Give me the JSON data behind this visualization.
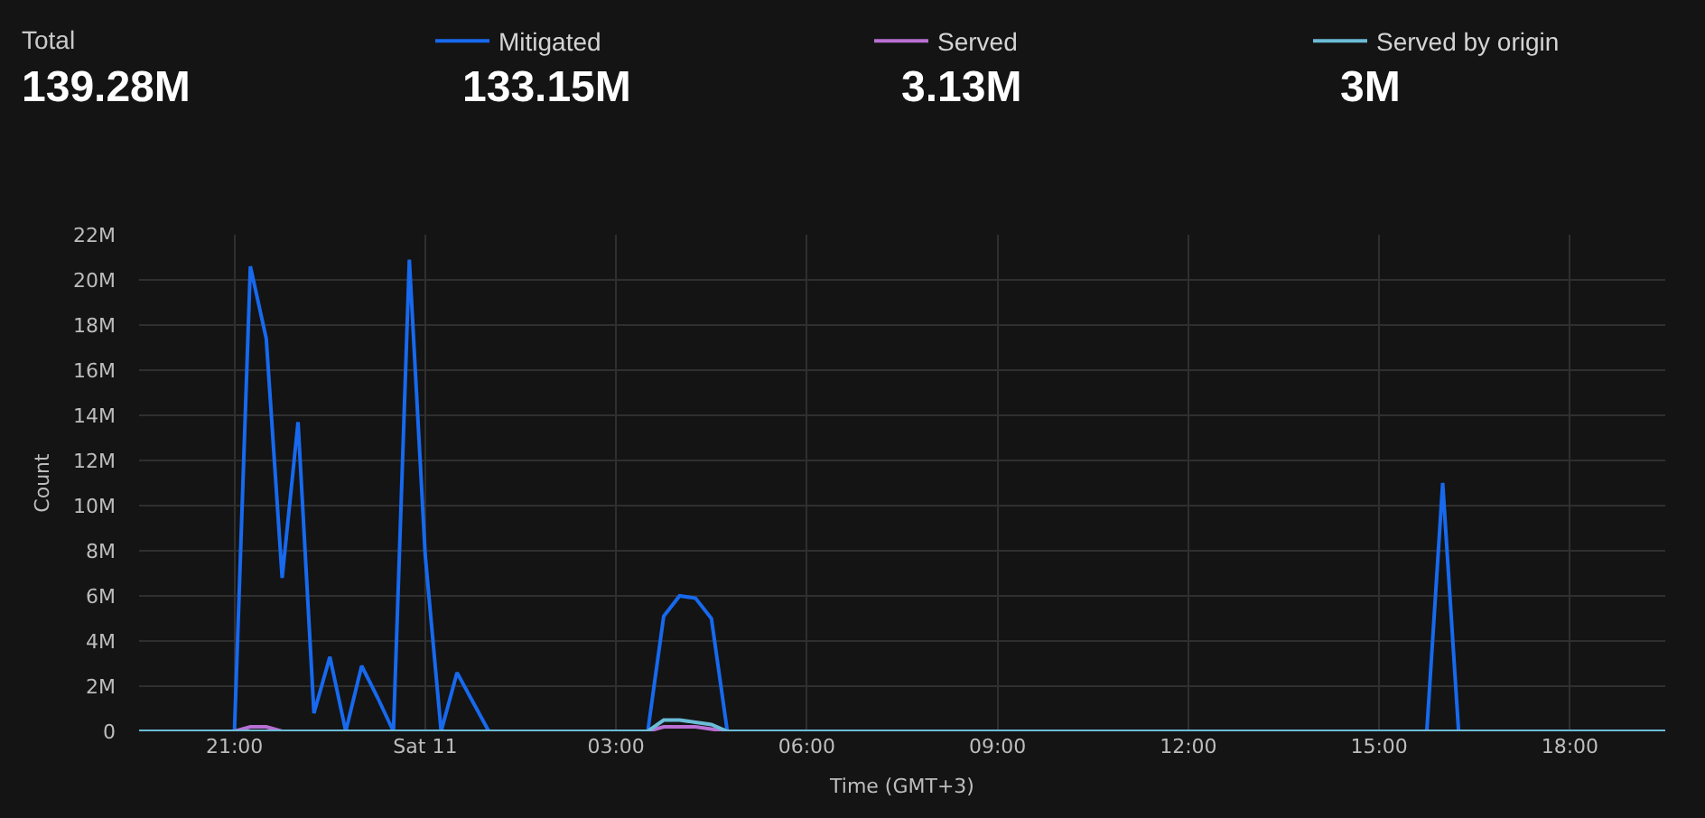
{
  "chart_data": {
    "type": "line",
    "xlabel": "Time (GMT+3)",
    "ylabel": "Count",
    "annotations": [
      "Total",
      "139.28M",
      "133.15M",
      "3.13M",
      "3M"
    ],
    "categories": [
      null,
      null,
      null,
      null,
      null,
      null,
      "21:00",
      null,
      null,
      null,
      null,
      null,
      null,
      null,
      null,
      null,
      null,
      null,
      "Sat 11",
      null,
      null,
      null,
      null,
      null,
      null,
      null,
      null,
      null,
      null,
      null,
      "03:00",
      null,
      null,
      null,
      null,
      null,
      null,
      null,
      null,
      null,
      null,
      null,
      "06:00",
      null,
      null,
      null,
      null,
      null,
      null,
      null,
      null,
      null,
      null,
      null,
      "09:00",
      null,
      null,
      null,
      null,
      null,
      null,
      null,
      null,
      null,
      null,
      null,
      "12:00",
      null,
      null,
      null,
      null,
      null,
      null,
      null,
      null,
      null,
      null,
      null,
      "15:00",
      null,
      null,
      null,
      null,
      null,
      null,
      null,
      null,
      null,
      null,
      null,
      "18:00",
      null,
      null,
      null,
      null,
      null,
      null
    ],
    "series": [
      {
        "name": "Mitigated",
        "color": "#1769ee",
        "values": [
          null,
          null,
          null,
          null,
          null,
          null,
          0,
          20.6,
          17.4,
          6.8,
          13.7,
          0.8,
          3.3,
          0,
          2.9,
          1.5,
          0,
          20.9,
          7.8,
          0,
          2.6,
          1.3,
          0,
          null,
          null,
          null,
          null,
          null,
          null,
          null,
          null,
          null,
          0,
          5.1,
          6,
          5.9,
          5,
          0,
          null,
          null,
          null,
          null,
          null,
          null,
          null,
          null,
          null,
          null,
          null,
          null,
          null,
          null,
          null,
          null,
          null,
          null,
          null,
          null,
          null,
          null,
          null,
          null,
          null,
          null,
          null,
          null,
          null,
          null,
          null,
          null,
          null,
          null,
          null,
          null,
          null,
          null,
          null,
          null,
          null,
          null,
          null,
          0,
          11,
          0,
          null,
          null,
          null,
          null,
          null,
          null,
          null,
          null,
          null,
          null,
          null,
          null,
          null
        ]
      },
      {
        "name": "Served",
        "color": "#b96fd3",
        "values": [
          null,
          null,
          null,
          null,
          null,
          null,
          0,
          0.2,
          0.2,
          0,
          null,
          null,
          null,
          null,
          null,
          null,
          null,
          null,
          null,
          null,
          null,
          null,
          null,
          null,
          null,
          null,
          null,
          null,
          null,
          null,
          null,
          null,
          0,
          0.2,
          0.2,
          0.2,
          0.1,
          0,
          null,
          null,
          null,
          null,
          null,
          null,
          null,
          null,
          null,
          null,
          null,
          null,
          null,
          null,
          null,
          null,
          null,
          null,
          null,
          null,
          null,
          null,
          null,
          null,
          null,
          null,
          null,
          null,
          null,
          null,
          null,
          null,
          null,
          null,
          null,
          null,
          null,
          null,
          null,
          null,
          null,
          null,
          null,
          null,
          null,
          null,
          null,
          null,
          null,
          null,
          null,
          null,
          null,
          null,
          null,
          null,
          null,
          null,
          null
        ]
      },
      {
        "name": "Served by origin",
        "color": "#6bbcd6",
        "values": [
          0,
          0,
          0,
          0,
          0,
          0,
          0,
          0,
          0,
          0,
          0,
          0,
          0,
          0,
          0,
          0,
          0,
          0,
          0,
          0,
          0,
          0,
          0,
          0,
          0,
          0,
          0,
          0,
          0,
          0,
          0,
          0,
          0,
          0.5,
          0.5,
          0.4,
          0.3,
          0,
          0,
          0,
          0,
          0,
          0,
          0,
          0,
          0,
          0,
          0,
          0,
          0,
          0,
          0,
          0,
          0,
          0,
          0,
          0,
          0,
          0,
          0,
          0,
          0,
          0,
          0,
          0,
          0,
          0,
          0,
          0,
          0,
          0,
          0,
          0,
          0,
          0,
          0,
          0,
          0,
          0,
          0,
          0,
          0,
          0,
          0,
          0,
          0,
          0,
          0,
          0,
          0,
          0,
          0,
          0,
          0,
          0,
          0,
          0
        ]
      }
    ],
    "ylim": [
      0,
      22
    ],
    "yticks": [
      0,
      {
        "value": 2,
        "label": "2M"
      },
      {
        "value": 4,
        "label": "4M"
      },
      {
        "value": 6,
        "label": "6M"
      },
      {
        "value": 8,
        "label": "8M"
      },
      {
        "value": 10,
        "label": "10M"
      },
      {
        "value": 12,
        "label": "12M"
      },
      {
        "value": 14,
        "label": "14M"
      },
      {
        "value": 16,
        "label": "16M"
      },
      {
        "value": 18,
        "label": "18M"
      },
      {
        "value": 20,
        "label": "20M"
      },
      {
        "value": 22,
        "label": "22M"
      }
    ],
    "grid": true,
    "legend": "top"
  }
}
